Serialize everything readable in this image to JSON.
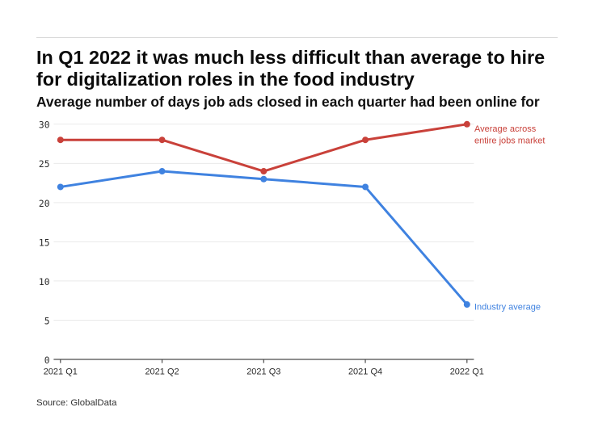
{
  "header": {
    "title": "In Q1 2022 it was much less difficult than average to hire for digitalization roles in the food industry",
    "subtitle": "Average number of days job ads closed in each quarter had been online for"
  },
  "footer": {
    "source": "Source: GlobalData"
  },
  "chart_data": {
    "type": "line",
    "title": "In Q1 2022 it was much less difficult than average to hire for digitalization roles in the food industry",
    "subtitle": "Average number of days job ads closed in each quarter had been online for",
    "categories": [
      "2021 Q1",
      "2021 Q2",
      "2021 Q3",
      "2021 Q4",
      "2022 Q1"
    ],
    "series": [
      {
        "name": "Average across entire jobs market",
        "legend_lines": [
          "Average across",
          "entire jobs market"
        ],
        "color": "#c9413a",
        "values": [
          28,
          28,
          24,
          28,
          30
        ]
      },
      {
        "name": "Industry average",
        "legend_lines": [
          "Industry average"
        ],
        "color": "#3f82e0",
        "values": [
          22,
          24,
          23,
          22,
          7
        ]
      }
    ],
    "xlabel": "",
    "ylabel": "",
    "ylim": [
      0,
      30
    ],
    "yticks": [
      0,
      5,
      10,
      15,
      20,
      25,
      30
    ],
    "grid": true,
    "legend_position": "right-of-last-point",
    "source": "Source: GlobalData"
  },
  "style": {
    "grid_color": "#eaeaea",
    "axis_color": "#4a4a4a",
    "tick_label_color": "#2b2b2b",
    "top_rule_color": "#dadada"
  }
}
